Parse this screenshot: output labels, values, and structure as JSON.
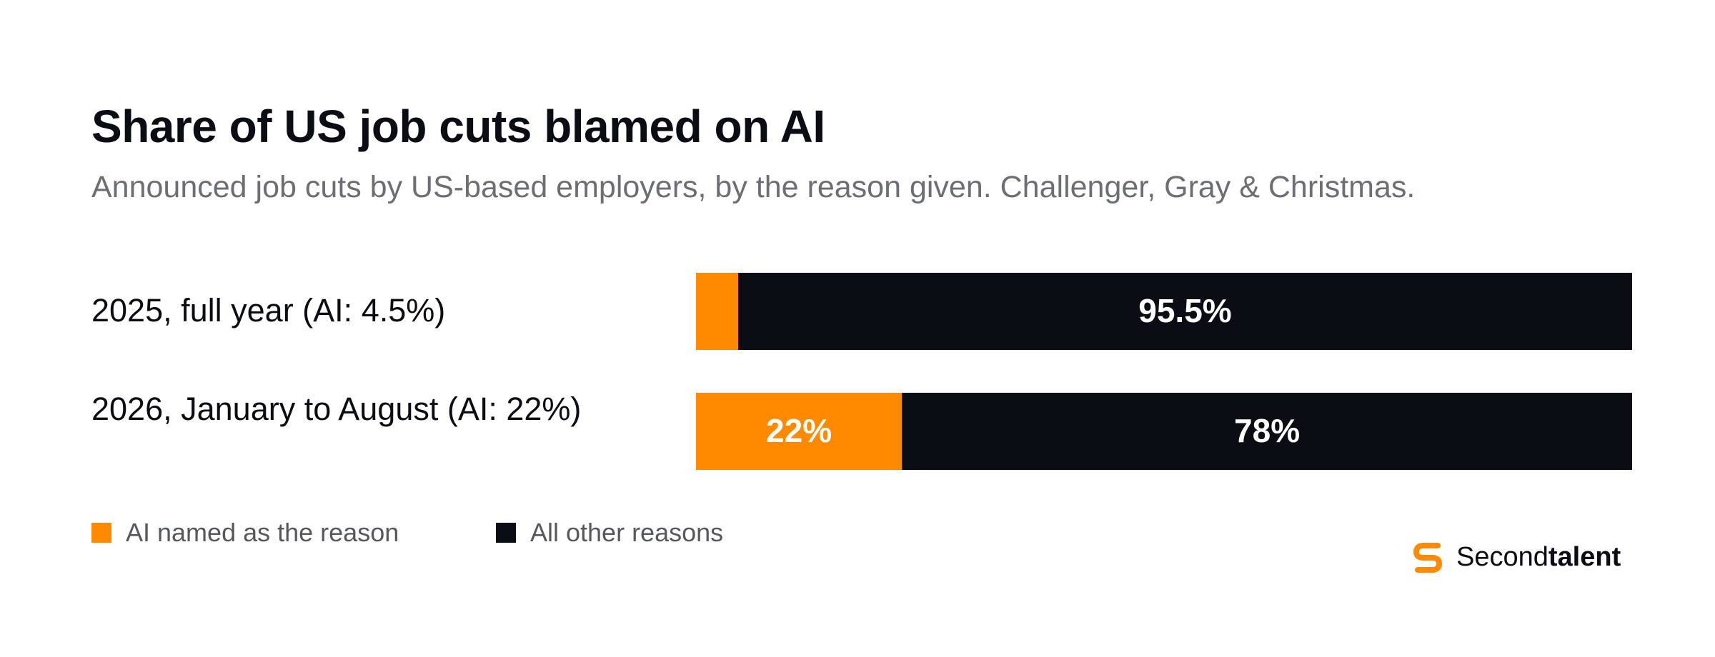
{
  "chart_data": {
    "type": "bar",
    "orientation": "horizontal",
    "stacked": true,
    "title": "Share of US job cuts blamed on AI",
    "subtitle": "Announced job cuts by US-based employers, by the reason given. Challenger, Gray & Christmas.",
    "categories": [
      "2025, full year (AI: 4.5%)",
      "2026, January to August (AI: 22%)"
    ],
    "series": [
      {
        "name": "AI named as the reason",
        "values": [
          4.5,
          22
        ],
        "color": "#ff8a00",
        "labels": [
          "",
          "22%"
        ]
      },
      {
        "name": "All other reasons",
        "values": [
          95.5,
          78
        ],
        "color": "#0b0d14",
        "labels": [
          "95.5%",
          "78%"
        ]
      }
    ],
    "xlim": [
      0,
      100
    ],
    "grid": false,
    "legend_position": "bottom-left"
  },
  "brand": {
    "icon": "secondtalent-s-logo",
    "name_regular": "Second",
    "name_bold": "talent",
    "accent_color": "#ff8a00"
  }
}
